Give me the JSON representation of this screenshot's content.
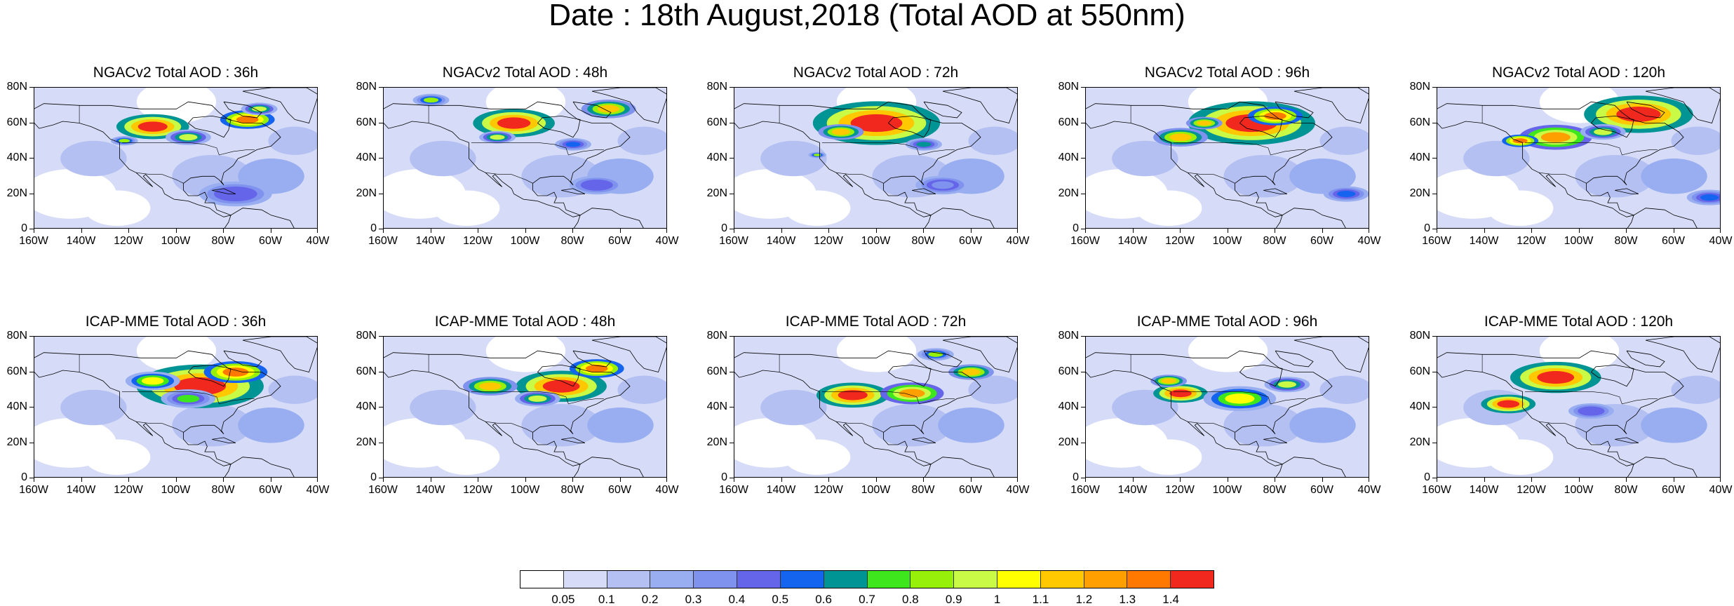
{
  "title": "Date : 18th August,2018 (Total AOD at 550nm)",
  "lat_labels": [
    "80N",
    "60N",
    "40N",
    "20N",
    "0"
  ],
  "lon_labels": [
    "160W",
    "140W",
    "120W",
    "100W",
    "80W",
    "60W",
    "40W"
  ],
  "map_extent": {
    "lon": [
      -160,
      -40
    ],
    "lat": [
      0,
      80
    ]
  },
  "panels": [
    {
      "title": "NGACv2 Total AOD : 36h",
      "model": "NGACv2",
      "lead": "36h"
    },
    {
      "title": "NGACv2 Total AOD : 48h",
      "model": "NGACv2",
      "lead": "48h"
    },
    {
      "title": "NGACv2 Total AOD : 72h",
      "model": "NGACv2",
      "lead": "72h"
    },
    {
      "title": "NGACv2 Total AOD : 96h",
      "model": "NGACv2",
      "lead": "96h"
    },
    {
      "title": "NGACv2 Total AOD : 120h",
      "model": "NGACv2",
      "lead": "120h"
    },
    {
      "title": "ICAP-MME Total AOD : 36h",
      "model": "ICAP-MME",
      "lead": "36h"
    },
    {
      "title": "ICAP-MME Total AOD : 48h",
      "model": "ICAP-MME",
      "lead": "48h"
    },
    {
      "title": "ICAP-MME Total AOD : 72h",
      "model": "ICAP-MME",
      "lead": "72h"
    },
    {
      "title": "ICAP-MME Total AOD : 96h",
      "model": "ICAP-MME",
      "lead": "96h"
    },
    {
      "title": "ICAP-MME Total AOD : 120h",
      "model": "ICAP-MME",
      "lead": "120h"
    }
  ],
  "colorbar": {
    "labels": [
      "0.05",
      "0.1",
      "0.2",
      "0.3",
      "0.4",
      "0.5",
      "0.6",
      "0.7",
      "0.8",
      "0.9",
      "1",
      "1.1",
      "1.2",
      "1.3",
      "1.4"
    ],
    "colors": [
      "#ffffff",
      "#d6dcf7",
      "#b4c0f2",
      "#98aef0",
      "#7f92ee",
      "#6565e9",
      "#1464f0",
      "#009494",
      "#3ee61e",
      "#96f00a",
      "#c8fa46",
      "#ffff00",
      "#ffc800",
      "#ffa000",
      "#ff7800",
      "#f0281e"
    ]
  }
}
